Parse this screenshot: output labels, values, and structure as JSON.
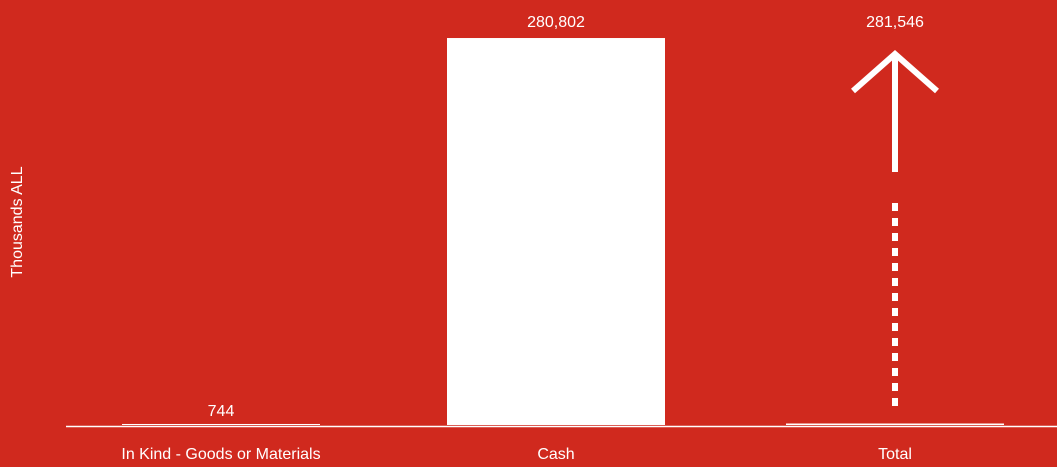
{
  "colors": {
    "background": "#d0291e",
    "bars": "#ffffff"
  },
  "chart_data": {
    "type": "bar",
    "ylabel": "Thousands ALL",
    "categories": [
      "In Kind - Goods or Materials",
      "Cash",
      "Total"
    ],
    "values": [
      744,
      280802,
      281546
    ],
    "value_labels": [
      "744",
      "280,802",
      "281,546"
    ],
    "ylim": [
      0,
      281546
    ],
    "grid": false,
    "legend": "none",
    "total_style": "arrow"
  }
}
